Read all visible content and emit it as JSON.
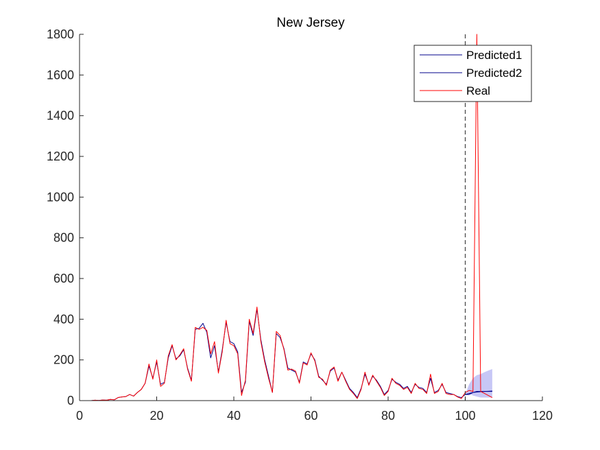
{
  "chart_data": {
    "type": "line",
    "title": "New Jersey",
    "xlabel": "",
    "ylabel": "",
    "xlim": [
      0,
      120
    ],
    "ylim": [
      0,
      1800
    ],
    "xticks": [
      0,
      20,
      40,
      60,
      80,
      100,
      120
    ],
    "yticks": [
      0,
      200,
      400,
      600,
      800,
      1000,
      1200,
      1400,
      1600,
      1800
    ],
    "xtick_labels": [
      "0",
      "20",
      "40",
      "60",
      "80",
      "100",
      "120"
    ],
    "ytick_labels": [
      "0",
      "200",
      "400",
      "600",
      "800",
      "1000",
      "1200",
      "1400",
      "1600",
      "1800"
    ],
    "grid": false,
    "legend_position": "top-right",
    "vline": {
      "x": 100,
      "style": "dashed",
      "color": "#404040"
    },
    "series": [
      {
        "name": "Predicted1",
        "color": "#00008b",
        "x": [
          1,
          2,
          3,
          4,
          5,
          6,
          7,
          8,
          9,
          10,
          11,
          12,
          13,
          14,
          15,
          16,
          17,
          18,
          19,
          20,
          21,
          22,
          23,
          24,
          25,
          26,
          27,
          28,
          29,
          30,
          31,
          32,
          33,
          34,
          35,
          36,
          37,
          38,
          39,
          40,
          41,
          42,
          43,
          44,
          45,
          46,
          47,
          48,
          49,
          50,
          51,
          52,
          53,
          54,
          55,
          56,
          57,
          58,
          59,
          60,
          61,
          62,
          63,
          64,
          65,
          66,
          67,
          68,
          69,
          70,
          71,
          72,
          73,
          74,
          75,
          76,
          77,
          78,
          79,
          80,
          81,
          82,
          83,
          84,
          85,
          86,
          87,
          88,
          89,
          90,
          91,
          92,
          93,
          94,
          95,
          96,
          97,
          98,
          99,
          100,
          101,
          102,
          103,
          104,
          105,
          106,
          107
        ],
        "y": [
          0,
          0,
          0,
          2,
          1,
          3,
          2,
          6,
          4,
          15,
          18,
          20,
          30,
          22,
          40,
          55,
          85,
          170,
          110,
          190,
          80,
          90,
          210,
          270,
          205,
          220,
          250,
          160,
          100,
          350,
          355,
          380,
          335,
          210,
          270,
          140,
          250,
          385,
          290,
          280,
          240,
          40,
          90,
          390,
          320,
          450,
          300,
          200,
          120,
          40,
          330,
          310,
          255,
          160,
          150,
          140,
          90,
          190,
          180,
          230,
          200,
          120,
          100,
          80,
          145,
          160,
          100,
          140,
          100,
          60,
          40,
          15,
          60,
          130,
          80,
          120,
          100,
          70,
          30,
          50,
          105,
          90,
          80,
          60,
          70,
          40,
          80,
          65,
          60,
          40,
          110,
          40,
          50,
          80,
          40,
          35,
          30,
          20,
          15,
          30,
          30,
          40,
          45,
          45,
          45,
          45,
          45
        ]
      },
      {
        "name": "Predicted2",
        "color": "#00008b",
        "x": [
          100,
          101,
          102,
          103,
          104,
          105,
          106,
          107
        ],
        "y": [
          30,
          35,
          40,
          42,
          44,
          45,
          46,
          47
        ]
      },
      {
        "name": "Real",
        "color": "#ff0000",
        "x": [
          1,
          2,
          3,
          4,
          5,
          6,
          7,
          8,
          9,
          10,
          11,
          12,
          13,
          14,
          15,
          16,
          17,
          18,
          19,
          20,
          21,
          22,
          23,
          24,
          25,
          26,
          27,
          28,
          29,
          30,
          31,
          32,
          33,
          34,
          35,
          36,
          37,
          38,
          39,
          40,
          41,
          42,
          43,
          44,
          45,
          46,
          47,
          48,
          49,
          50,
          51,
          52,
          53,
          54,
          55,
          56,
          57,
          58,
          59,
          60,
          61,
          62,
          63,
          64,
          65,
          66,
          67,
          68,
          69,
          70,
          71,
          72,
          73,
          74,
          75,
          76,
          77,
          78,
          79,
          80,
          81,
          82,
          83,
          84,
          85,
          86,
          87,
          88,
          89,
          90,
          91,
          92,
          93,
          94,
          95,
          96,
          97,
          98,
          99,
          100,
          101,
          102,
          103,
          104,
          105,
          106,
          107
        ],
        "y": [
          0,
          0,
          0,
          2,
          1,
          3,
          2,
          6,
          4,
          15,
          18,
          20,
          30,
          22,
          40,
          55,
          85,
          180,
          105,
          200,
          70,
          85,
          220,
          275,
          200,
          225,
          255,
          155,
          95,
          360,
          350,
          360,
          345,
          230,
          290,
          135,
          240,
          395,
          280,
          270,
          230,
          25,
          100,
          400,
          330,
          460,
          290,
          190,
          110,
          40,
          340,
          320,
          250,
          150,
          155,
          145,
          85,
          185,
          175,
          235,
          195,
          115,
          105,
          75,
          150,
          165,
          95,
          140,
          95,
          55,
          35,
          10,
          55,
          140,
          75,
          125,
          95,
          65,
          25,
          45,
          110,
          85,
          75,
          55,
          65,
          35,
          85,
          60,
          55,
          35,
          130,
          35,
          45,
          85,
          35,
          30,
          30,
          18,
          10,
          40,
          50,
          45,
          1800,
          45,
          35,
          25,
          15
        ]
      }
    ],
    "confidence_band": {
      "color": "#9999ee",
      "x": [
        100,
        101,
        102,
        103,
        104,
        105,
        106,
        107
      ],
      "lower": [
        30,
        35,
        25,
        20,
        15,
        15,
        15,
        15
      ],
      "upper": [
        30,
        80,
        110,
        125,
        130,
        140,
        148,
        155
      ]
    }
  }
}
